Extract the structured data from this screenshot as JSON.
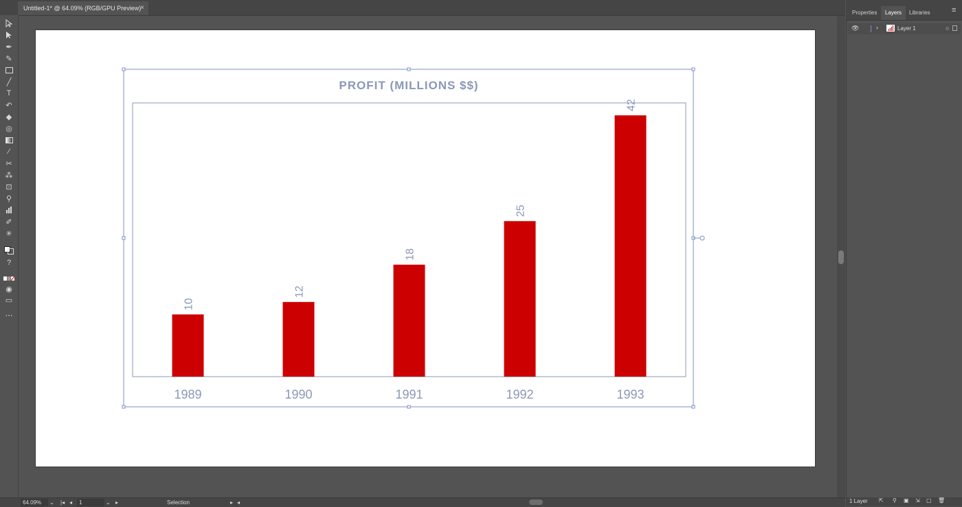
{
  "document_tab": {
    "title": "Untitled-1* @ 64.09% (RGB/GPU Preview)",
    "close": "×"
  },
  "panel": {
    "tabs": [
      "Properties",
      "Layers",
      "Libraries"
    ],
    "menu_icon": "≡",
    "layer_name": "Layer 1",
    "layer_count": "1 Layer"
  },
  "status": {
    "zoom": "64.09%",
    "page": "1",
    "tool": "Selection"
  },
  "tools": [
    "selection-tool",
    "direct-selection-tool",
    "pen-tool",
    "curvature-tool",
    "rectangle-tool",
    "paintbrush-tool",
    "type-tool",
    "rotate-tool",
    "eraser-tool",
    "shape-builder-tool",
    "gradient-tool",
    "eyedropper-tool",
    "blend-tool",
    "symbol-sprayer-tool",
    "artboard-tool",
    "zoom-tool",
    "graph-tool",
    "pencil-tool",
    "puppet-warp-tool"
  ],
  "colors": {
    "bar": "#cc0000",
    "text": "#8a97b6",
    "frame": "#7a8fc4"
  },
  "chart_data": {
    "type": "bar",
    "title": "PROFIT (MILLIONS $$)",
    "categories": [
      "1989",
      "1990",
      "1991",
      "1992",
      "1993"
    ],
    "values": [
      10,
      12,
      18,
      25,
      42
    ],
    "ylim": [
      0,
      44
    ]
  }
}
